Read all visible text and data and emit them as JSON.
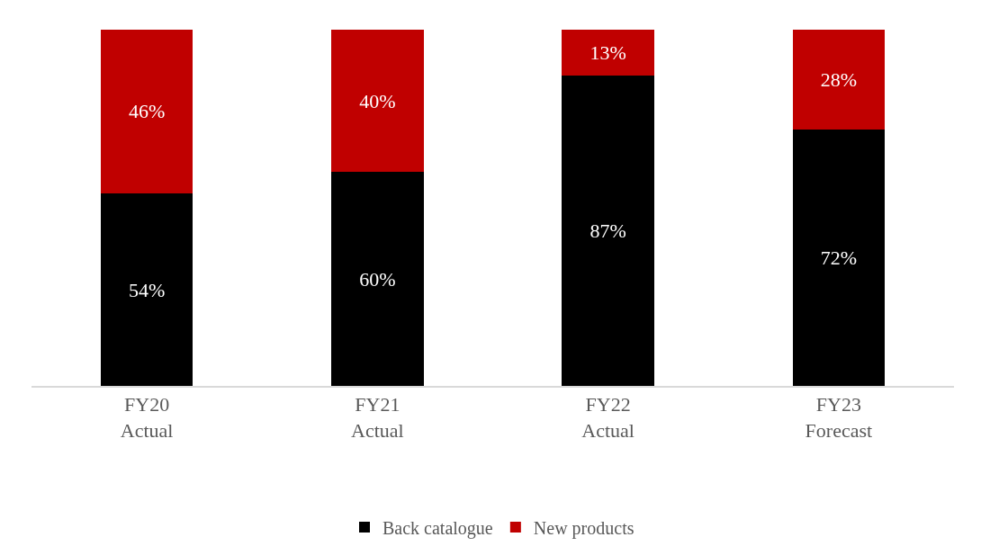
{
  "chart_data": {
    "type": "bar",
    "stacked": true,
    "categories": [
      "FY20\nActual",
      "FY21\nActual",
      "FY22\nActual",
      "FY23\nForecast"
    ],
    "series": [
      {
        "name": "Back catalogue",
        "color": "#000000",
        "values": [
          54,
          60,
          87,
          72
        ],
        "value_labels": [
          "54%",
          "60%",
          "87%",
          "72%"
        ]
      },
      {
        "name": "New products",
        "color": "#c00000",
        "values": [
          46,
          40,
          13,
          28
        ],
        "value_labels": [
          "46%",
          "40%",
          "13%",
          "28%"
        ]
      }
    ],
    "legend": "bottom",
    "tick_labels": "x"
  }
}
